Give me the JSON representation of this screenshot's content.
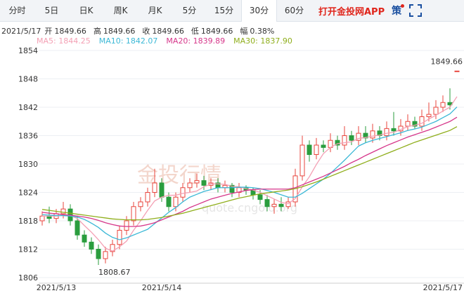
{
  "tabs": {
    "items": [
      "分时",
      "5日",
      "日K",
      "周K",
      "月K",
      "5分",
      "15分",
      "30分",
      "60分"
    ],
    "active": 7,
    "app": "打开金投网APP",
    "strategy": "策"
  },
  "info": {
    "date": "2021/5/17",
    "items": [
      {
        "label": "开",
        "value": "1849.66"
      },
      {
        "label": "高",
        "value": "1849.66"
      },
      {
        "label": "收",
        "value": "1849.66"
      },
      {
        "label": "低",
        "value": "1849.66"
      },
      {
        "label": "幅",
        "value": "0.38%"
      }
    ]
  },
  "watermark": {
    "brand": "金投行情",
    "url": "quote.cngold.org"
  },
  "chart_data": {
    "type": "candlestick",
    "categories": [
      null,
      null,
      "2021/5/13",
      null,
      null,
      null,
      null,
      null,
      null,
      null,
      null,
      null,
      null,
      null,
      null,
      null,
      null,
      "2021/5/14",
      null,
      null,
      null,
      null,
      null,
      null,
      null,
      null,
      null,
      null,
      null,
      null,
      null,
      null,
      null,
      null,
      null,
      null,
      null,
      null,
      null,
      null,
      null,
      null,
      null,
      null,
      null,
      null,
      null,
      null,
      null,
      null,
      null,
      null,
      null,
      null,
      null,
      null,
      null,
      null,
      null,
      "2021/5/17"
    ],
    "open": [
      1818,
      1819,
      1818.5,
      1819.5,
      1820.5,
      1818,
      1815,
      1813.5,
      1812,
      1810,
      1811.5,
      1813,
      1816,
      1818,
      1821,
      1822,
      1824,
      1826,
      1823,
      1821,
      1823,
      1825,
      1826,
      1826.5,
      1825.5,
      1826,
      1825,
      1825.5,
      1824,
      1825,
      1824.5,
      1823.5,
      1822.5,
      1821,
      1821.5,
      1821,
      1822,
      1827.5,
      1834,
      1832,
      1834,
      1833.5,
      1835,
      1834,
      1836,
      1835,
      1836.5,
      1835.5,
      1837,
      1836,
      1837.5,
      1837,
      1838,
      1839,
      1838,
      1840,
      1840.5,
      1842,
      1843,
      1849.66
    ],
    "high": [
      1820,
      1821,
      1820.5,
      1822,
      1821.5,
      1819,
      1816,
      1814.5,
      1813,
      1812.5,
      1814,
      1817,
      1819,
      1822,
      1823,
      1825,
      1829,
      1827,
      1824,
      1824,
      1826,
      1827,
      1828,
      1827.5,
      1827,
      1827,
      1826.5,
      1826,
      1826,
      1825.5,
      1825,
      1824.5,
      1823.5,
      1822.5,
      1823,
      1823,
      1829,
      1836,
      1835,
      1835.5,
      1835,
      1836.5,
      1836,
      1838,
      1837,
      1838,
      1838,
      1838.5,
      1838,
      1839,
      1841,
      1839.5,
      1840.5,
      1840,
      1841.5,
      1843,
      1843.5,
      1844.5,
      1846,
      1849.66
    ],
    "low": [
      1817,
      1817.5,
      1817.5,
      1818.5,
      1817,
      1814,
      1812.5,
      1811,
      1808.67,
      1809,
      1810.5,
      1812,
      1815,
      1817,
      1820,
      1821,
      1823,
      1822,
      1820,
      1820,
      1822,
      1824,
      1825,
      1824.5,
      1824.5,
      1824,
      1824,
      1823,
      1823,
      1823.5,
      1822.5,
      1821.5,
      1820,
      1819.5,
      1820,
      1820.5,
      1821,
      1826.5,
      1830.5,
      1831,
      1832.5,
      1832.5,
      1833,
      1833,
      1834,
      1834,
      1834.5,
      1834.5,
      1835,
      1835,
      1836,
      1836,
      1837,
      1837.5,
      1837,
      1839,
      1839.5,
      1841,
      1841.5,
      1849.66
    ],
    "close": [
      1819,
      1818.5,
      1819.5,
      1820.5,
      1818,
      1815,
      1813.5,
      1812,
      1810,
      1811.5,
      1813,
      1816,
      1818,
      1821,
      1822,
      1824,
      1826,
      1823,
      1821,
      1823,
      1825,
      1826,
      1826.5,
      1825.5,
      1826,
      1825,
      1825.5,
      1824,
      1825,
      1824.5,
      1823.5,
      1822.5,
      1821,
      1821.5,
      1821,
      1822,
      1827.5,
      1834,
      1832,
      1834,
      1833.5,
      1835,
      1834,
      1836,
      1835,
      1836.5,
      1835.5,
      1837,
      1836,
      1837.5,
      1837,
      1838,
      1839,
      1838,
      1840,
      1840.5,
      1842,
      1843,
      1842.5,
      1849.66
    ],
    "up_color": "#e8463e",
    "down_color": "#2a9d3e",
    "lines": [
      {
        "legend": "MA5: 1844.25",
        "color": "#f4a0b4",
        "values": [
          1819,
          1819,
          1819,
          1819.2,
          1819.1,
          1818.5,
          1817,
          1815.6,
          1814,
          1812.2,
          1811.6,
          1812.5,
          1813.7,
          1816,
          1818,
          1820.2,
          1822.2,
          1823,
          1823.4,
          1823.4,
          1823.8,
          1824,
          1824.3,
          1825.2,
          1825.8,
          1825.8,
          1825.7,
          1825.3,
          1825.2,
          1824.8,
          1824.5,
          1824,
          1823.3,
          1822.6,
          1821.9,
          1821.6,
          1822.7,
          1825.2,
          1827.3,
          1829.9,
          1832.2,
          1833.5,
          1834.3,
          1834.5,
          1834.7,
          1835.4,
          1835.6,
          1835.9,
          1836.1,
          1836.5,
          1836.7,
          1837.3,
          1837.9,
          1838.2,
          1838.6,
          1839.5,
          1840.3,
          1841.2,
          1842,
          1844.25
        ]
      },
      {
        "legend": "MA10: 1842.07",
        "color": "#3bb8d6",
        "values": [
          1819.3,
          1819.2,
          1819.1,
          1819.1,
          1819,
          1818.8,
          1818.3,
          1817.5,
          1816.6,
          1815.4,
          1814.5,
          1814,
          1814.4,
          1815,
          1815.6,
          1816.2,
          1817.4,
          1818.6,
          1819.8,
          1820.8,
          1822,
          1823,
          1823.6,
          1824.2,
          1824.6,
          1825,
          1825,
          1825,
          1825.1,
          1825.1,
          1825,
          1824.8,
          1824.4,
          1824,
          1823.5,
          1823,
          1823,
          1823.8,
          1824.8,
          1825.8,
          1826.8,
          1828,
          1829.4,
          1830.8,
          1832.3,
          1833.8,
          1834.5,
          1835,
          1835.4,
          1835.8,
          1836.2,
          1836.6,
          1837.1,
          1837.4,
          1837.8,
          1838.4,
          1839,
          1839.8,
          1840.6,
          1842.07
        ]
      },
      {
        "legend": "MA20: 1839.89",
        "color": "#d6368a",
        "values": [
          1819.8,
          1819.6,
          1819.5,
          1819.3,
          1819.2,
          1819,
          1818.8,
          1818.5,
          1818.1,
          1817.6,
          1817.2,
          1816.9,
          1816.8,
          1816.8,
          1816.9,
          1817.2,
          1817.6,
          1818.2,
          1818.8,
          1819.4,
          1820,
          1820.8,
          1821.4,
          1822,
          1822.6,
          1823,
          1823.4,
          1823.8,
          1824.1,
          1824.4,
          1824.6,
          1824.7,
          1824.7,
          1824.7,
          1824.7,
          1824.7,
          1825,
          1825.6,
          1826.2,
          1826.8,
          1827.4,
          1828.1,
          1828.8,
          1829.5,
          1830.3,
          1831,
          1831.8,
          1832.5,
          1833.2,
          1833.9,
          1834.5,
          1835.1,
          1835.7,
          1836.2,
          1836.7,
          1837.2,
          1837.8,
          1838.4,
          1839,
          1839.89
        ]
      },
      {
        "legend": "MA30: 1837.90",
        "color": "#8fae1b",
        "values": [
          1820.4,
          1820.2,
          1820,
          1819.8,
          1819.6,
          1819.4,
          1819.2,
          1819,
          1818.8,
          1818.6,
          1818.4,
          1818.3,
          1818.2,
          1818.2,
          1818.2,
          1818.3,
          1818.5,
          1818.7,
          1819,
          1819.3,
          1819.6,
          1820,
          1820.4,
          1820.8,
          1821.2,
          1821.6,
          1822,
          1822.4,
          1822.8,
          1823.1,
          1823.4,
          1823.7,
          1823.9,
          1824.1,
          1824.3,
          1824.5,
          1824.8,
          1825.2,
          1825.7,
          1826.2,
          1826.8,
          1827.4,
          1828,
          1828.6,
          1829.2,
          1829.8,
          1830.4,
          1831,
          1831.6,
          1832.2,
          1832.8,
          1833.4,
          1834,
          1834.6,
          1835.1,
          1835.6,
          1836.1,
          1836.6,
          1837.1,
          1837.9
        ]
      }
    ],
    "ylim": [
      1806,
      1854
    ],
    "yticks": [
      1806,
      1812,
      1818,
      1824,
      1830,
      1836,
      1842,
      1848,
      1854
    ],
    "grid": true
  }
}
